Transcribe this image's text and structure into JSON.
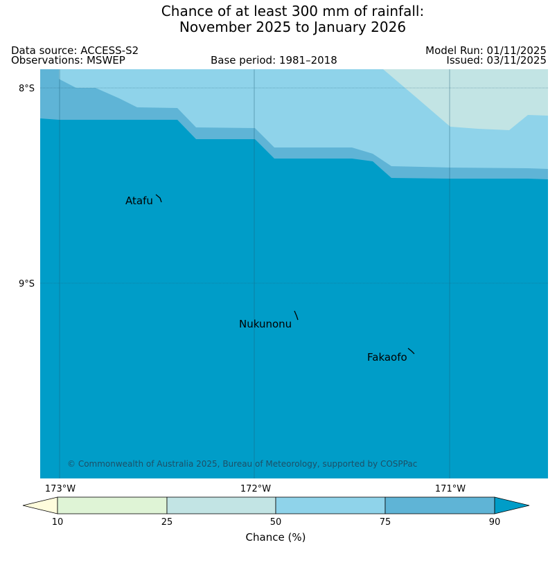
{
  "title": {
    "line1": "Chance of at least 300 mm of rainfall:",
    "line2": "November 2025 to January 2026"
  },
  "meta": {
    "data_source": "Data source: ACCESS-S2",
    "observations": "Observations: MSWEP",
    "base_period": "Base period: 1981–2018",
    "model_run": "Model Run: 01/11/2025",
    "issued": "Issued: 03/11/2025"
  },
  "map": {
    "lat_ticks": [
      "8°S",
      "9°S"
    ],
    "lon_ticks": [
      "173°W",
      "172°W",
      "171°W"
    ],
    "places": {
      "atafu": "Atafu",
      "nukunonu": "Nukunonu",
      "fakaofo": "Fakaofo"
    },
    "copyright": "© Commonwealth of Australia 2025, Bureau of Meteorology, supported by COSPPac"
  },
  "colorbar": {
    "label": "Chance (%)",
    "ticks": [
      "10",
      "25",
      "50",
      "75",
      "90"
    ],
    "colors": {
      "below_10": "#fffcdc",
      "b10_25": "#dff4d6",
      "b25_50": "#c2e4e4",
      "b50_75": "#8fd3ea",
      "b75_90": "#5fb4d6",
      "above_90": "#009dc8"
    }
  }
}
